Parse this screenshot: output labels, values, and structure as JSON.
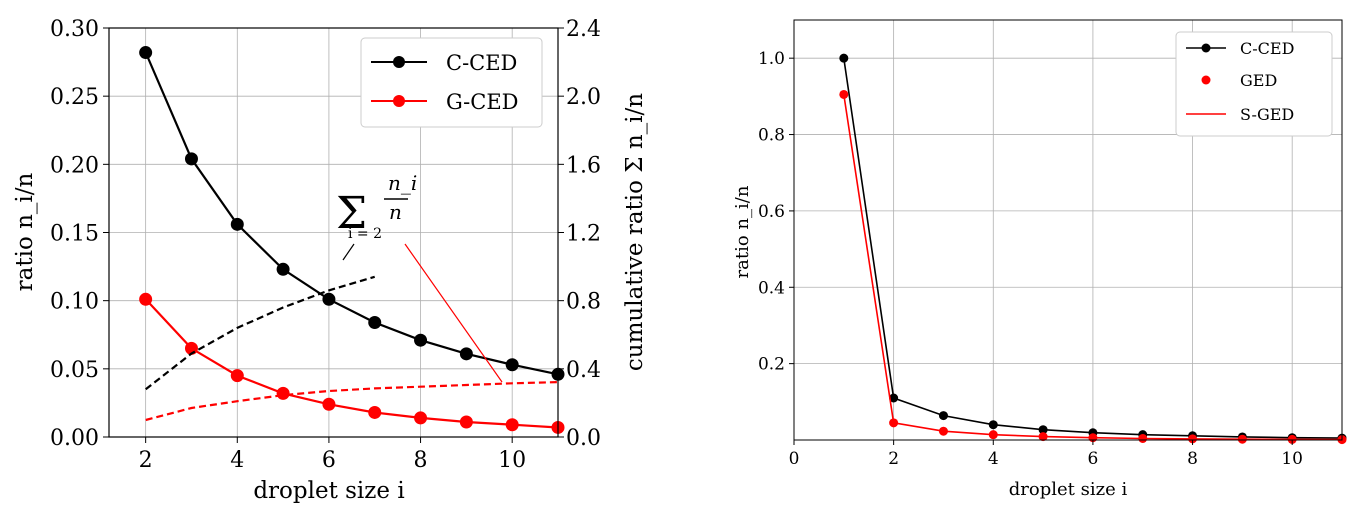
{
  "chart_data": [
    {
      "type": "line",
      "xlabel": "droplet size i",
      "ylabel": "ratio n_i/n",
      "y2label": "cumulative ratio Σ n_i/n",
      "xlim": [
        1.2,
        11.0
      ],
      "ylim": [
        0,
        0.3
      ],
      "y2lim": [
        0,
        2.4
      ],
      "xticks": [
        "2",
        "4",
        "6",
        "8",
        "10"
      ],
      "yticks": [
        "0.00",
        "0.05",
        "0.10",
        "0.15",
        "0.20",
        "0.25",
        "0.30"
      ],
      "y2ticks": [
        "0.0",
        "0.4",
        "0.8",
        "1.2",
        "1.6",
        "2.0",
        "2.4"
      ],
      "grid": true,
      "legend_position": "top-right",
      "annotation": {
        "sum_label": "Σ",
        "sum_sub": "i = 2",
        "numerator": "n_i",
        "denominator": "n"
      },
      "series": [
        {
          "name": "C-CED",
          "color": "#000000",
          "axis": "left",
          "marker": true,
          "x": [
            2,
            3,
            4,
            5,
            6,
            7,
            8,
            9,
            10,
            11
          ],
          "y": [
            0.282,
            0.204,
            0.156,
            0.123,
            0.101,
            0.084,
            0.071,
            0.061,
            0.053,
            0.046
          ]
        },
        {
          "name": "G-CED",
          "color": "#ff0000",
          "axis": "left",
          "marker": true,
          "x": [
            2,
            3,
            4,
            5,
            6,
            7,
            8,
            9,
            10,
            11
          ],
          "y": [
            0.101,
            0.065,
            0.045,
            0.032,
            0.024,
            0.018,
            0.014,
            0.011,
            0.009,
            0.007
          ]
        },
        {
          "color": "#000000",
          "axis": "right",
          "dashed": true,
          "x": [
            2,
            3,
            4,
            5,
            6,
            7
          ],
          "y": [
            0.28,
            0.49,
            0.64,
            0.76,
            0.86,
            0.94
          ]
        },
        {
          "color": "#ff0000",
          "axis": "right",
          "dashed": true,
          "x": [
            2,
            3,
            4,
            5,
            6,
            7,
            8,
            9,
            10,
            11
          ],
          "y": [
            0.1,
            0.17,
            0.21,
            0.245,
            0.27,
            0.285,
            0.295,
            0.305,
            0.315,
            0.322
          ]
        }
      ]
    },
    {
      "type": "line",
      "xlabel": "droplet size i",
      "ylabel": "ratio n_i/n",
      "xlim": [
        0,
        11.0
      ],
      "ylim": [
        0,
        1.1
      ],
      "xticks": [
        "0",
        "2",
        "4",
        "6",
        "8",
        "10"
      ],
      "yticks": [
        "0.2",
        "0.4",
        "0.6",
        "0.8",
        "1.0"
      ],
      "grid": true,
      "legend_position": "top-right",
      "series": [
        {
          "name": "C-CED",
          "color": "#000000",
          "marker": true,
          "line": true,
          "x": [
            1,
            2,
            3,
            4,
            5,
            6,
            7,
            8,
            9,
            10,
            11
          ],
          "y": [
            1.0,
            0.11,
            0.064,
            0.04,
            0.027,
            0.019,
            0.014,
            0.011,
            0.008,
            0.006,
            0.005
          ]
        },
        {
          "name": "GED",
          "color": "#ff0000",
          "marker": true,
          "line": false,
          "x": [
            1,
            2,
            3,
            4,
            5,
            6,
            7,
            8,
            9,
            10,
            11
          ],
          "y": [
            0.905,
            0.045,
            0.023,
            0.014,
            0.009,
            0.006,
            0.004,
            0.003,
            0.002,
            0.0015,
            0.001
          ]
        },
        {
          "name": "S-GED",
          "color": "#ff0000",
          "marker": false,
          "line": true,
          "x": [
            1,
            2,
            3,
            4,
            5,
            6,
            7,
            8,
            9,
            10,
            11
          ],
          "y": [
            0.905,
            0.045,
            0.023,
            0.014,
            0.009,
            0.006,
            0.004,
            0.003,
            0.002,
            0.0015,
            0.001
          ]
        }
      ]
    }
  ]
}
